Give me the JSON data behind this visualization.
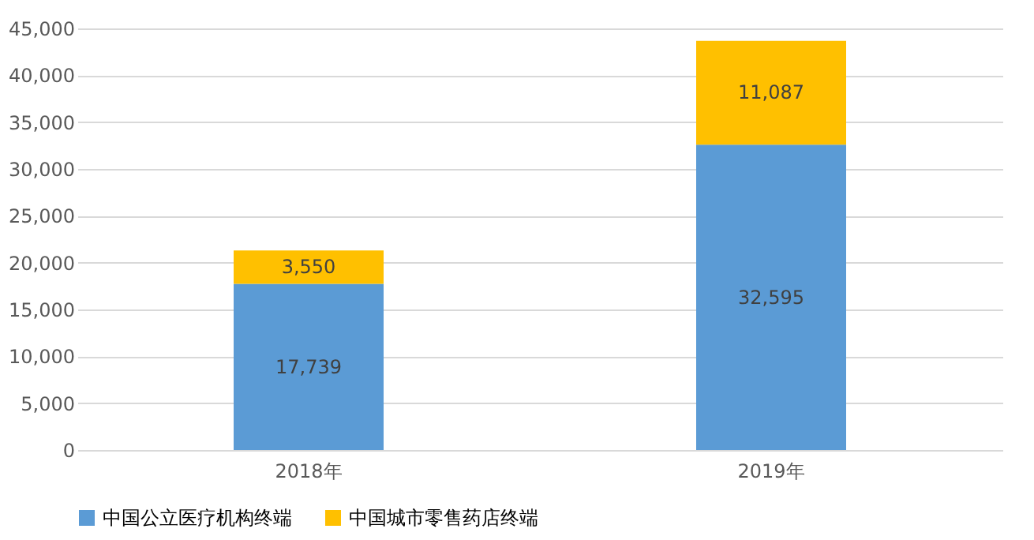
{
  "chart_data": {
    "type": "bar",
    "stacked": true,
    "categories": [
      "2018年",
      "2019年"
    ],
    "series": [
      {
        "name": "中国公立医疗机构终端",
        "color": "#5b9bd5",
        "values": [
          17739,
          32595
        ],
        "value_labels": [
          "17,739",
          "32,595"
        ]
      },
      {
        "name": "中国城市零售药店终端",
        "color": "#ffc000",
        "values": [
          3550,
          11087
        ],
        "value_labels": [
          "3,550",
          "11,087"
        ]
      }
    ],
    "ylim": [
      0,
      45000
    ],
    "yticks": [
      0,
      {
        "value": 5000,
        "label": "5,000"
      },
      {
        "value": 10000,
        "label": "10,000"
      },
      {
        "value": 15000,
        "label": "15,000"
      },
      {
        "value": 20000,
        "label": "20,000"
      },
      {
        "value": 25000,
        "label": "25,000"
      },
      {
        "value": 30000,
        "label": "30,000"
      },
      {
        "value": 35000,
        "label": "35,000"
      },
      {
        "value": 40000,
        "label": "40,000"
      },
      {
        "value": 45000,
        "label": "45,000"
      }
    ],
    "grid": "y",
    "legend": "bottom",
    "data_labels": true
  }
}
